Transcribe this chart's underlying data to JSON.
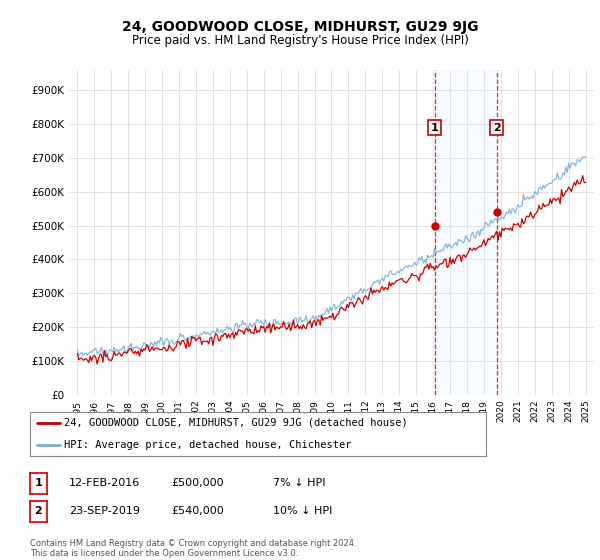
{
  "title": "24, GOODWOOD CLOSE, MIDHURST, GU29 9JG",
  "subtitle": "Price paid vs. HM Land Registry's House Price Index (HPI)",
  "ylabel_ticks": [
    "£0",
    "£100K",
    "£200K",
    "£300K",
    "£400K",
    "£500K",
    "£600K",
    "£700K",
    "£800K",
    "£900K"
  ],
  "ytick_values": [
    0,
    100000,
    200000,
    300000,
    400000,
    500000,
    600000,
    700000,
    800000,
    900000
  ],
  "ylim": [
    0,
    960000
  ],
  "sale1": {
    "date_label": "12-FEB-2016",
    "price": 500000,
    "pct": "7%",
    "direction": "↓",
    "marker_year": 2016.1
  },
  "sale2": {
    "date_label": "23-SEP-2019",
    "price": 540000,
    "pct": "10%",
    "direction": "↓",
    "marker_year": 2019.75
  },
  "legend_red": "24, GOODWOOD CLOSE, MIDHURST, GU29 9JG (detached house)",
  "legend_blue": "HPI: Average price, detached house, Chichester",
  "footer": "Contains HM Land Registry data © Crown copyright and database right 2024.\nThis data is licensed under the Open Government Licence v3.0.",
  "red_color": "#cc0000",
  "blue_color": "#7bafd4",
  "vline1_year": 2016.1,
  "vline2_year": 2019.75,
  "background_plot": "#ffffff",
  "background_fig": "#ffffff",
  "grid_color": "#dddddd",
  "shade_color": "#ddeeff"
}
